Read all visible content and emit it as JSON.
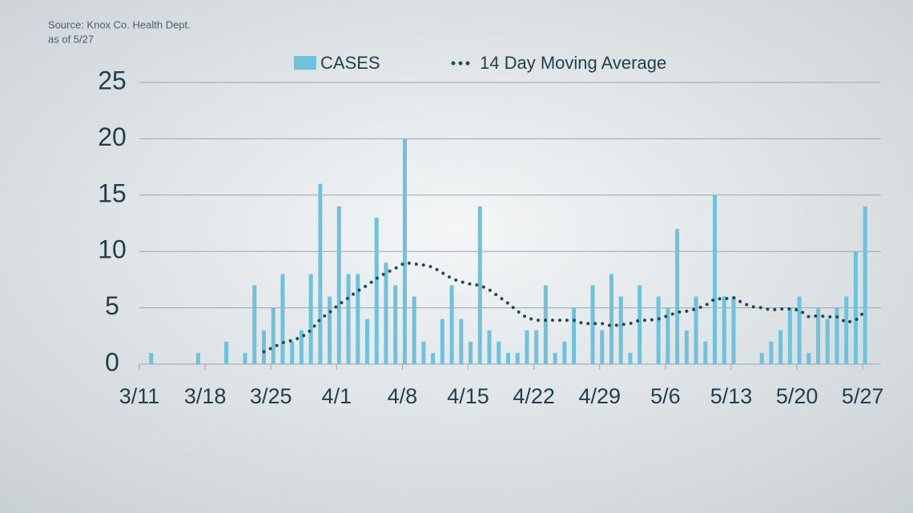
{
  "chart_data": {
    "type": "bar",
    "notes": [
      "Source: Knox Co. Health Dept.",
      "as of 5/27"
    ],
    "categories": [
      "3/11",
      null,
      null,
      null,
      null,
      null,
      null,
      "3/18",
      null,
      null,
      null,
      null,
      null,
      null,
      "3/25",
      null,
      null,
      null,
      null,
      null,
      null,
      "4/1",
      null,
      null,
      null,
      null,
      null,
      null,
      "4/8",
      null,
      null,
      null,
      null,
      null,
      null,
      "4/15",
      null,
      null,
      null,
      null,
      null,
      null,
      "4/22",
      null,
      null,
      null,
      null,
      null,
      null,
      "4/29",
      null,
      null,
      null,
      null,
      null,
      null,
      "5/6",
      null,
      null,
      null,
      null,
      null,
      null,
      "5/13",
      null,
      null,
      null,
      null,
      null,
      null,
      "5/20",
      null,
      null,
      null,
      null,
      null,
      null,
      "5/27"
    ],
    "series": [
      {
        "name": "CASES",
        "type": "bar",
        "color": "#6fc2dc",
        "values": [
          0,
          1,
          0,
          0,
          0,
          0,
          1,
          0,
          0,
          2,
          0,
          1,
          7,
          3,
          5,
          8,
          2,
          3,
          8,
          16,
          6,
          14,
          8,
          8,
          4,
          13,
          9,
          7,
          20,
          6,
          2,
          1,
          4,
          7,
          4,
          2,
          14,
          3,
          2,
          1,
          1,
          3,
          3,
          7,
          1,
          2,
          5,
          0,
          7,
          3,
          8,
          6,
          1,
          7,
          0,
          6,
          5,
          12,
          3,
          6,
          2,
          15,
          6,
          6,
          0,
          0,
          1,
          2,
          3,
          5,
          6,
          1,
          5,
          4,
          5,
          6,
          10,
          14
        ]
      },
      {
        "name": "14 Day Moving Average",
        "type": "line",
        "color": "#1f4a57",
        "values": [
          null,
          null,
          null,
          null,
          null,
          null,
          null,
          null,
          null,
          null,
          null,
          null,
          null,
          1.1,
          1.5,
          1.9,
          2.1,
          2.4,
          3.0,
          4.0,
          4.6,
          5.3,
          5.9,
          6.5,
          7.0,
          7.6,
          8.1,
          8.5,
          9.0,
          8.9,
          8.8,
          8.6,
          8.1,
          7.6,
          7.3,
          7.1,
          7.0,
          6.6,
          6.0,
          5.4,
          4.7,
          4.1,
          3.9,
          3.9,
          3.9,
          3.9,
          3.9,
          3.6,
          3.6,
          3.6,
          3.4,
          3.5,
          3.6,
          3.9,
          3.9,
          4.0,
          4.3,
          4.6,
          4.7,
          4.9,
          5.2,
          5.8,
          5.8,
          5.9,
          5.4,
          5.1,
          5.0,
          4.8,
          4.9,
          4.9,
          4.8,
          4.2,
          4.3,
          4.2,
          4.2,
          3.7,
          3.9,
          4.7
        ]
      }
    ],
    "ylim": [
      0,
      25
    ],
    "yticks": [
      0,
      5,
      10,
      15,
      20,
      25
    ],
    "grid": true,
    "legend": "top"
  }
}
